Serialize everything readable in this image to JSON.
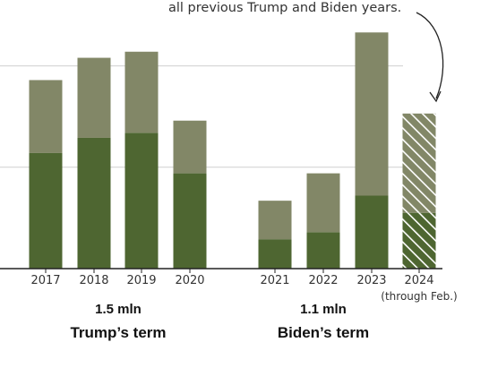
{
  "chart_data": {
    "type": "bar",
    "stacked": true,
    "annotation": "all previous Trump and Biden years.",
    "categories": [
      "2017",
      "2018",
      "2019",
      "2020",
      "2021",
      "2022",
      "2023",
      "2024"
    ],
    "category_note": {
      "2024": "(through Feb.)"
    },
    "partial_year_category": "2024",
    "series": [
      {
        "color": "#4e6631",
        "values": [
          114,
          129,
          134,
          94,
          29,
          36,
          72,
          55
        ]
      },
      {
        "color": "#828767",
        "values": [
          72,
          79,
          80,
          52,
          38,
          58,
          161,
          98
        ]
      }
    ],
    "ylim": [
      0,
      250
    ],
    "gridlines": [
      100,
      200
    ],
    "groups": [
      {
        "total": "1.5 mln",
        "label": "Trump’s term",
        "categories": [
          "2017",
          "2018",
          "2019",
          "2020"
        ]
      },
      {
        "total": "1.1 mln",
        "label": "Biden’s term",
        "categories": [
          "2021",
          "2022",
          "2023",
          "2024"
        ]
      }
    ]
  }
}
